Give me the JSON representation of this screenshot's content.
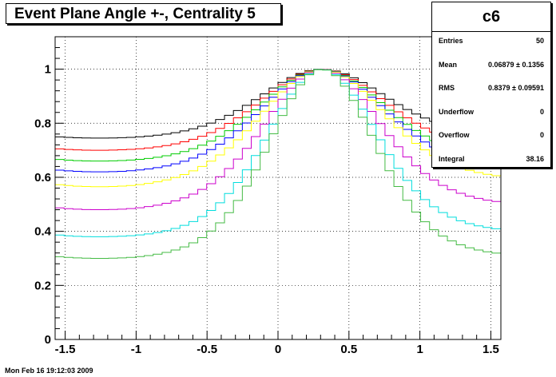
{
  "title": "Event Plane Angle +-, Centrality 5",
  "timestamp": "Mon Feb 16 19:12:03 2009",
  "stats": {
    "name": "c6",
    "rows": [
      {
        "label": "Entries",
        "value": "50"
      },
      {
        "label": "Mean",
        "value": "0.06879 ±  0.1356"
      },
      {
        "label": "RMS",
        "value": "0.8379 ±  0.09591"
      },
      {
        "label": "Underflow",
        "value": "0"
      },
      {
        "label": "Overflow",
        "value": "0"
      },
      {
        "label": "Integral",
        "value": "38.16"
      }
    ]
  },
  "chart_data": {
    "type": "line",
    "title": "Event Plane Angle +-, Centrality 5",
    "xlabel": "",
    "ylabel": "",
    "xlim": [
      -1.5708,
      1.5708
    ],
    "ylim": [
      0,
      1.12
    ],
    "grid": true,
    "x_ticks": [
      -1.5,
      -1,
      -0.5,
      0,
      0.5,
      1,
      1.5
    ],
    "y_ticks": [
      0,
      0.2,
      0.4,
      0.6,
      0.8,
      1
    ],
    "bins": 50,
    "series": [
      {
        "color": "#000000",
        "peak": 0.31,
        "base": 0.755,
        "center": 0.745,
        "sharp": 1.3
      },
      {
        "color": "#ff0000",
        "peak": 0.31,
        "base": 0.705,
        "center": 0.7,
        "sharp": 1.3
      },
      {
        "color": "#00cc00",
        "peak": 0.31,
        "base": 0.665,
        "center": 0.66,
        "sharp": 1.3
      },
      {
        "color": "#0000ff",
        "peak": 0.31,
        "base": 0.635,
        "center": 0.62,
        "sharp": 1.3
      },
      {
        "color": "#ffff00",
        "peak": 0.31,
        "base": 0.595,
        "center": 0.565,
        "sharp": 1.3
      },
      {
        "color": "#cc00cc",
        "peak": 0.31,
        "base": 0.5,
        "center": 0.48,
        "sharp": 1.5
      },
      {
        "color": "#00dddd",
        "peak": 0.31,
        "base": 0.4,
        "center": 0.38,
        "sharp": 1.7
      },
      {
        "color": "#44bb44",
        "peak": 0.31,
        "base": 0.31,
        "center": 0.3,
        "sharp": 1.8
      }
    ]
  }
}
